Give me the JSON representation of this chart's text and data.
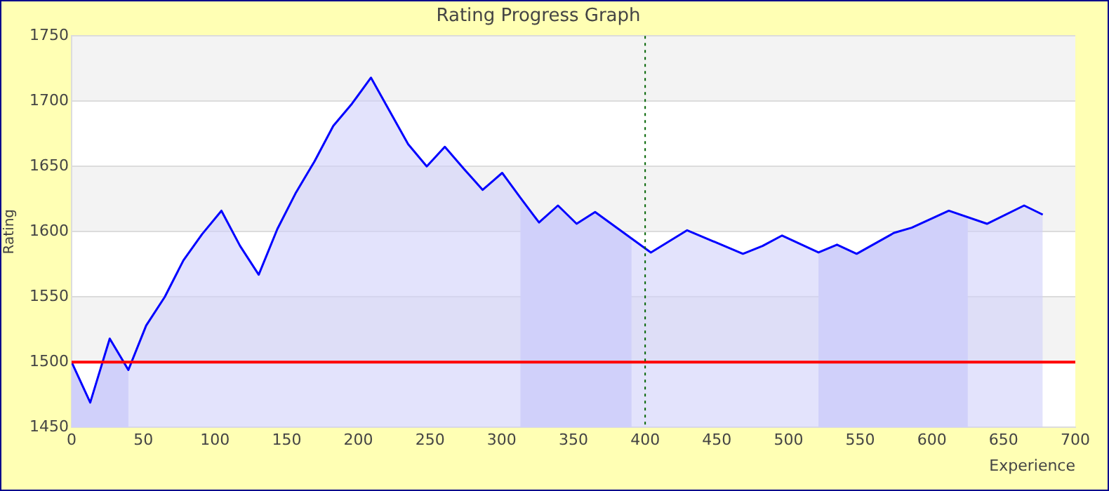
{
  "chart_data": {
    "type": "area",
    "title": "Rating Progress Graph",
    "xlabel": "Experience",
    "ylabel": "Rating",
    "x": [
      0,
      13,
      26.6,
      39.6,
      52,
      65,
      78,
      91,
      104.5,
      117.5,
      130.5,
      143.5,
      156.5,
      169.5,
      182.5,
      195.5,
      208.8,
      221.5,
      234.7,
      247.7,
      260.3,
      273.7,
      286.7,
      300.3,
      313,
      326,
      339.2,
      352.2,
      365.1,
      404,
      429.3,
      468.2,
      481.9,
      495.5,
      520.9,
      533.8,
      547.5,
      573.5,
      585.9,
      611.8,
      638.4,
      664.3,
      677.3
    ],
    "series": [
      {
        "color": "#0000ff",
        "values": [
          1500,
          1469,
          1518,
          1494,
          1528,
          1550,
          1578,
          1598,
          1616,
          1589,
          1567,
          1602,
          1630,
          1654,
          1681,
          1698,
          1718,
          1693,
          1667,
          1650,
          1665,
          1648,
          1632,
          1645,
          1626,
          1607,
          1620,
          1606,
          1615,
          1584,
          1601,
          1583,
          1589,
          1597,
          1584,
          1590,
          1583,
          1599,
          1603,
          1616,
          1606,
          1620,
          1613
        ]
      }
    ],
    "xlim": [
      0,
      700
    ],
    "xticks": [
      0,
      50,
      100,
      150,
      200,
      250,
      300,
      350,
      400,
      450,
      500,
      550,
      600,
      650,
      700
    ],
    "ylim": [
      1450,
      1750
    ],
    "yticks": [
      1450,
      1500,
      1550,
      1600,
      1650,
      1700,
      1750
    ],
    "grid": "y",
    "legend": false,
    "marker": "none",
    "line_style": "solid",
    "ref_lines": [
      {
        "axis": "y",
        "value": 1500,
        "color": "#ff0000",
        "line_style": "solid"
      },
      {
        "axis": "x",
        "value": 400,
        "color": "#006400",
        "line_style": "dotted"
      }
    ],
    "bands": [
      {
        "axis": "x",
        "from": 0,
        "to": 39.6,
        "color": "#cfd0fa"
      },
      {
        "axis": "x",
        "from": 313,
        "to": 390.5,
        "color": "#cfd0fa"
      },
      {
        "axis": "x",
        "from": 520.9,
        "to": 625,
        "color": "#cfd0fa"
      }
    ]
  }
}
